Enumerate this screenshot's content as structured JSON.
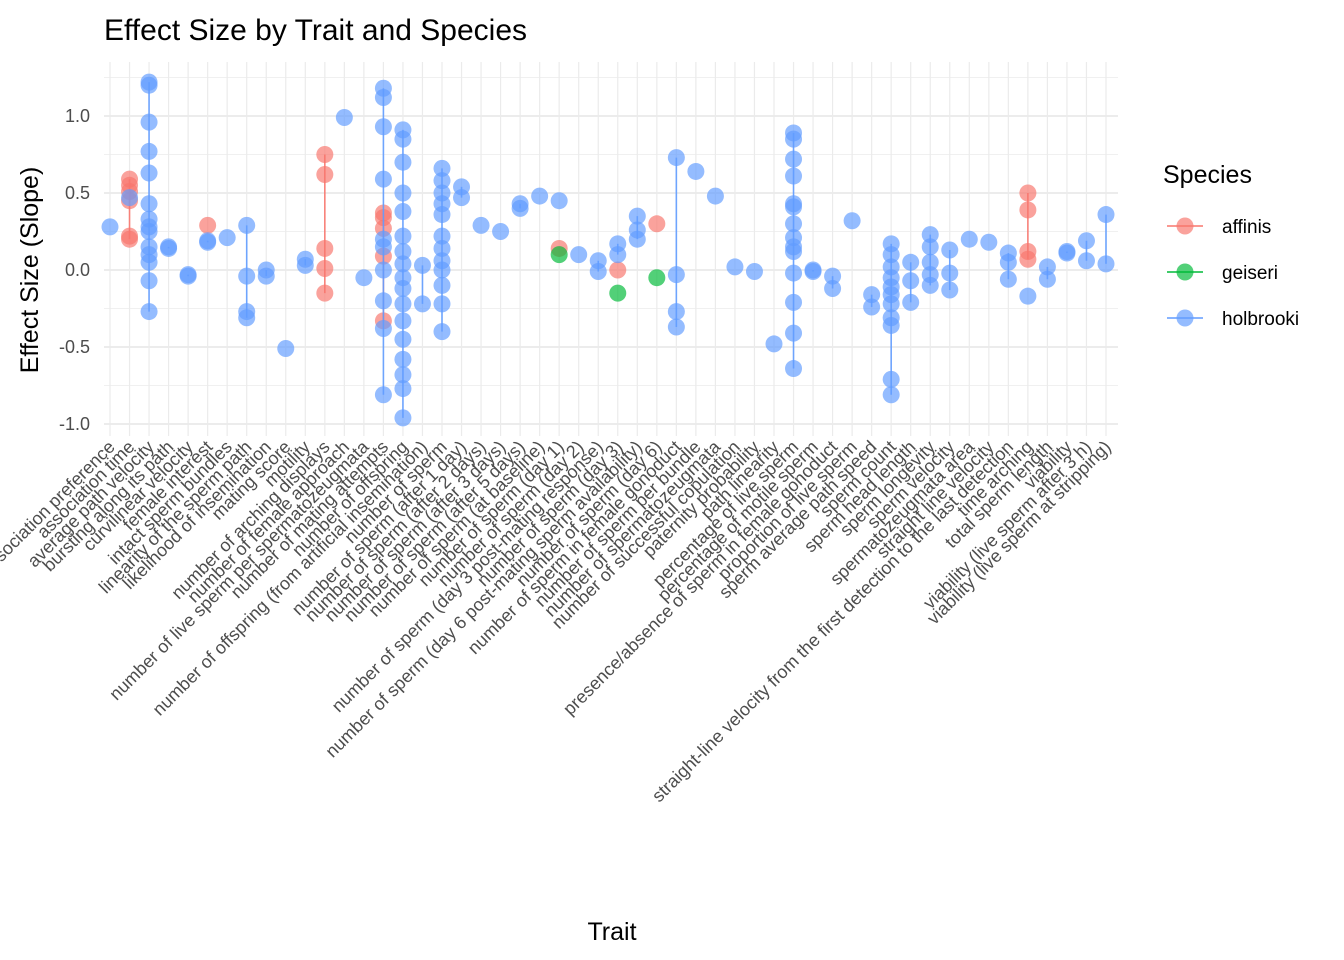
{
  "chart_data": {
    "type": "scatter",
    "title": "Effect Size by Trait and Species",
    "xlabel": "Trait",
    "ylabel": "Effect Size (Slope)",
    "ylim": [
      -1.1,
      1.3
    ],
    "yticks": [
      -1.0,
      -0.5,
      0.0,
      0.5,
      1.0
    ],
    "ytick_labels": [
      "-1.0",
      "-0.5",
      "0.0",
      "0.5",
      "1.0"
    ],
    "grid": true,
    "legend": {
      "title": "Species",
      "position": "right"
    },
    "colors": {
      "affinis": "#F8766D",
      "geiseri": "#00BA38",
      "holbrooki": "#619CFF"
    },
    "categories": [
      "association preference",
      "association time",
      "average path velocity",
      "bursting along its path",
      "curvilinear velocity",
      "female interest",
      "intact sperm bundles",
      "linearity of the sperm path",
      "likelihood of insemination",
      "mating score",
      "motility",
      "number of arching displays",
      "number of female approach",
      "number of live sperm per spermatozeugmata",
      "number of mating attempts",
      "number of offspring",
      "number of offspring (from artificial insemination)",
      "number of sperm",
      "number of sperm (after 1 day)",
      "number of sperm (after 2 days)",
      "number of sperm (after 3 days)",
      "number of sperm (after 5 days)",
      "number of sperm (at baseline)",
      "number of sperm (day 1)",
      "number of sperm (day 2)",
      "number of sperm (day 3 post-mating response)",
      "number of sperm (day 3)",
      "number of sperm (day 6 post-mating sperm availability)",
      "number of sperm (day 6)",
      "number of sperm in female gonoduct",
      "number of sperm per bundle",
      "number of spermatozeugmata",
      "number of successful copulation",
      "paternity probability",
      "path linearity",
      "percentage of live sperm",
      "percentage of motile sperm",
      "presence/absence of sperm in female gonoduct",
      "proportion of live sperm",
      "sperm average path speed",
      "sperm count",
      "sperm head length",
      "sperm longevity",
      "sperm velocity",
      "spermatozeugmata area",
      "straight line velocity",
      "straight-line velocity from the first detection to the last detection",
      "time arching",
      "total sperm length",
      "viability",
      "viability (live sperm after 3 h)",
      "viability (live sperm at stripping)"
    ],
    "series": [
      {
        "name": "affinis",
        "color": "#F8766D",
        "points": [
          {
            "x": "association time",
            "y": 0.55
          },
          {
            "x": "association time",
            "y": 0.59
          },
          {
            "x": "association time",
            "y": 0.51
          },
          {
            "x": "association time",
            "y": 0.45
          },
          {
            "x": "association time",
            "y": 0.2
          },
          {
            "x": "association time",
            "y": 0.22
          },
          {
            "x": "female interest",
            "y": 0.29
          },
          {
            "x": "number of arching displays",
            "y": 0.75
          },
          {
            "x": "number of arching displays",
            "y": 0.62
          },
          {
            "x": "number of arching displays",
            "y": 0.14
          },
          {
            "x": "number of arching displays",
            "y": 0.01
          },
          {
            "x": "number of arching displays",
            "y": -0.15
          },
          {
            "x": "number of mating attempts",
            "y": 0.37
          },
          {
            "x": "number of mating attempts",
            "y": 0.34
          },
          {
            "x": "number of mating attempts",
            "y": 0.27
          },
          {
            "x": "number of mating attempts",
            "y": 0.09
          },
          {
            "x": "number of mating attempts",
            "y": -0.33
          },
          {
            "x": "number of sperm (day 1)",
            "y": 0.14
          },
          {
            "x": "number of sperm (day 3)",
            "y": 0.0
          },
          {
            "x": "number of sperm (day 6)",
            "y": 0.3
          },
          {
            "x": "time arching",
            "y": 0.5
          },
          {
            "x": "time arching",
            "y": 0.39
          },
          {
            "x": "time arching",
            "y": 0.12
          },
          {
            "x": "time arching",
            "y": 0.07
          }
        ]
      },
      {
        "name": "geiseri",
        "color": "#00BA38",
        "points": [
          {
            "x": "number of sperm (day 1)",
            "y": 0.1
          },
          {
            "x": "number of sperm (day 3)",
            "y": -0.15
          },
          {
            "x": "number of sperm (day 6)",
            "y": -0.05
          }
        ]
      },
      {
        "name": "holbrooki",
        "color": "#619CFF",
        "points": [
          {
            "x": "association preference",
            "y": 0.28
          },
          {
            "x": "association time",
            "y": 0.47
          },
          {
            "x": "average path velocity",
            "y": 1.22
          },
          {
            "x": "average path velocity",
            "y": 1.2
          },
          {
            "x": "average path velocity",
            "y": 0.96
          },
          {
            "x": "average path velocity",
            "y": 0.77
          },
          {
            "x": "average path velocity",
            "y": 0.63
          },
          {
            "x": "average path velocity",
            "y": 0.43
          },
          {
            "x": "average path velocity",
            "y": 0.33
          },
          {
            "x": "average path velocity",
            "y": 0.28
          },
          {
            "x": "average path velocity",
            "y": 0.25
          },
          {
            "x": "average path velocity",
            "y": 0.15
          },
          {
            "x": "average path velocity",
            "y": 0.1
          },
          {
            "x": "average path velocity",
            "y": 0.05
          },
          {
            "x": "average path velocity",
            "y": -0.07
          },
          {
            "x": "average path velocity",
            "y": -0.27
          },
          {
            "x": "bursting along its path",
            "y": 0.15
          },
          {
            "x": "bursting along its path",
            "y": 0.14
          },
          {
            "x": "curvilinear velocity",
            "y": -0.03
          },
          {
            "x": "curvilinear velocity",
            "y": -0.04
          },
          {
            "x": "female interest",
            "y": 0.18
          },
          {
            "x": "female interest",
            "y": 0.19
          },
          {
            "x": "intact sperm bundles",
            "y": 0.21
          },
          {
            "x": "linearity of the sperm path",
            "y": 0.29
          },
          {
            "x": "linearity of the sperm path",
            "y": -0.04
          },
          {
            "x": "linearity of the sperm path",
            "y": -0.27
          },
          {
            "x": "linearity of the sperm path",
            "y": -0.31
          },
          {
            "x": "likelihood of insemination",
            "y": 0.0
          },
          {
            "x": "likelihood of insemination",
            "y": -0.04
          },
          {
            "x": "mating score",
            "y": -0.51
          },
          {
            "x": "motility",
            "y": 0.07
          },
          {
            "x": "motility",
            "y": 0.03
          },
          {
            "x": "number of female approach",
            "y": 0.99
          },
          {
            "x": "number of live sperm per spermatozeugmata",
            "y": -0.05
          },
          {
            "x": "number of mating attempts",
            "y": 1.18
          },
          {
            "x": "number of mating attempts",
            "y": 1.12
          },
          {
            "x": "number of mating attempts",
            "y": 0.93
          },
          {
            "x": "number of mating attempts",
            "y": 0.59
          },
          {
            "x": "number of mating attempts",
            "y": 0.2
          },
          {
            "x": "number of mating attempts",
            "y": 0.15
          },
          {
            "x": "number of mating attempts",
            "y": 0.0
          },
          {
            "x": "number of mating attempts",
            "y": -0.2
          },
          {
            "x": "number of mating attempts",
            "y": -0.38
          },
          {
            "x": "number of mating attempts",
            "y": -0.81
          },
          {
            "x": "number of offspring",
            "y": 0.91
          },
          {
            "x": "number of offspring",
            "y": 0.85
          },
          {
            "x": "number of offspring",
            "y": 0.7
          },
          {
            "x": "number of offspring",
            "y": 0.5
          },
          {
            "x": "number of offspring",
            "y": 0.38
          },
          {
            "x": "number of offspring",
            "y": 0.22
          },
          {
            "x": "number of offspring",
            "y": 0.12
          },
          {
            "x": "number of offspring",
            "y": 0.04
          },
          {
            "x": "number of offspring",
            "y": -0.05
          },
          {
            "x": "number of offspring",
            "y": -0.12
          },
          {
            "x": "number of offspring",
            "y": -0.22
          },
          {
            "x": "number of offspring",
            "y": -0.33
          },
          {
            "x": "number of offspring",
            "y": -0.45
          },
          {
            "x": "number of offspring",
            "y": -0.58
          },
          {
            "x": "number of offspring",
            "y": -0.68
          },
          {
            "x": "number of offspring",
            "y": -0.77
          },
          {
            "x": "number of offspring",
            "y": -0.96
          },
          {
            "x": "number of offspring (from artificial insemination)",
            "y": 0.03
          },
          {
            "x": "number of offspring (from artificial insemination)",
            "y": -0.22
          },
          {
            "x": "number of sperm",
            "y": 0.66
          },
          {
            "x": "number of sperm",
            "y": 0.58
          },
          {
            "x": "number of sperm",
            "y": 0.5
          },
          {
            "x": "number of sperm",
            "y": 0.43
          },
          {
            "x": "number of sperm",
            "y": 0.36
          },
          {
            "x": "number of sperm",
            "y": 0.22
          },
          {
            "x": "number of sperm",
            "y": 0.14
          },
          {
            "x": "number of sperm",
            "y": 0.06
          },
          {
            "x": "number of sperm",
            "y": 0.0
          },
          {
            "x": "number of sperm",
            "y": -0.1
          },
          {
            "x": "number of sperm",
            "y": -0.22
          },
          {
            "x": "number of sperm",
            "y": -0.4
          },
          {
            "x": "number of sperm (after 1 day)",
            "y": 0.54
          },
          {
            "x": "number of sperm (after 1 day)",
            "y": 0.47
          },
          {
            "x": "number of sperm (after 2 days)",
            "y": 0.29
          },
          {
            "x": "number of sperm (after 3 days)",
            "y": 0.25
          },
          {
            "x": "number of sperm (after 5 days)",
            "y": 0.43
          },
          {
            "x": "number of sperm (after 5 days)",
            "y": 0.4
          },
          {
            "x": "number of sperm (at baseline)",
            "y": 0.48
          },
          {
            "x": "number of sperm (day 1)",
            "y": 0.45
          },
          {
            "x": "number of sperm (day 2)",
            "y": 0.1
          },
          {
            "x": "number of sperm (day 3 post-mating response)",
            "y": 0.06
          },
          {
            "x": "number of sperm (day 3 post-mating response)",
            "y": -0.01
          },
          {
            "x": "number of sperm (day 3)",
            "y": 0.17
          },
          {
            "x": "number of sperm (day 3)",
            "y": 0.1
          },
          {
            "x": "number of sperm (day 6 post-mating sperm availability)",
            "y": 0.35
          },
          {
            "x": "number of sperm (day 6 post-mating sperm availability)",
            "y": 0.26
          },
          {
            "x": "number of sperm (day 6 post-mating sperm availability)",
            "y": 0.2
          },
          {
            "x": "number of sperm in female gonoduct",
            "y": 0.73
          },
          {
            "x": "number of sperm in female gonoduct",
            "y": -0.03
          },
          {
            "x": "number of sperm in female gonoduct",
            "y": -0.27
          },
          {
            "x": "number of sperm in female gonoduct",
            "y": -0.37
          },
          {
            "x": "number of sperm per bundle",
            "y": 0.64
          },
          {
            "x": "number of spermatozeugmata",
            "y": 0.48
          },
          {
            "x": "number of successful copulation",
            "y": 0.02
          },
          {
            "x": "paternity probability",
            "y": -0.01
          },
          {
            "x": "path linearity",
            "y": -0.48
          },
          {
            "x": "percentage of live sperm",
            "y": 0.89
          },
          {
            "x": "percentage of live sperm",
            "y": 0.85
          },
          {
            "x": "percentage of live sperm",
            "y": 0.72
          },
          {
            "x": "percentage of live sperm",
            "y": 0.61
          },
          {
            "x": "percentage of live sperm",
            "y": 0.43
          },
          {
            "x": "percentage of live sperm",
            "y": 0.41
          },
          {
            "x": "percentage of live sperm",
            "y": 0.3
          },
          {
            "x": "percentage of live sperm",
            "y": 0.21
          },
          {
            "x": "percentage of live sperm",
            "y": 0.15
          },
          {
            "x": "percentage of live sperm",
            "y": 0.12
          },
          {
            "x": "percentage of live sperm",
            "y": -0.02
          },
          {
            "x": "percentage of live sperm",
            "y": -0.21
          },
          {
            "x": "percentage of live sperm",
            "y": -0.41
          },
          {
            "x": "percentage of live sperm",
            "y": -0.64
          },
          {
            "x": "percentage of motile sperm",
            "y": 0.0
          },
          {
            "x": "percentage of motile sperm",
            "y": -0.01
          },
          {
            "x": "presence/absence of sperm in female gonoduct",
            "y": -0.04
          },
          {
            "x": "presence/absence of sperm in female gonoduct",
            "y": -0.12
          },
          {
            "x": "proportion of live sperm",
            "y": 0.32
          },
          {
            "x": "sperm average path speed",
            "y": -0.16
          },
          {
            "x": "sperm average path speed",
            "y": -0.24
          },
          {
            "x": "sperm count",
            "y": 0.17
          },
          {
            "x": "sperm count",
            "y": 0.1
          },
          {
            "x": "sperm count",
            "y": 0.02
          },
          {
            "x": "sperm count",
            "y": -0.05
          },
          {
            "x": "sperm count",
            "y": -0.11
          },
          {
            "x": "sperm count",
            "y": -0.16
          },
          {
            "x": "sperm count",
            "y": -0.22
          },
          {
            "x": "sperm count",
            "y": -0.31
          },
          {
            "x": "sperm count",
            "y": -0.36
          },
          {
            "x": "sperm count",
            "y": -0.71
          },
          {
            "x": "sperm count",
            "y": -0.81
          },
          {
            "x": "sperm head length",
            "y": 0.05
          },
          {
            "x": "sperm head length",
            "y": -0.07
          },
          {
            "x": "sperm head length",
            "y": -0.21
          },
          {
            "x": "sperm longevity",
            "y": 0.23
          },
          {
            "x": "sperm longevity",
            "y": 0.15
          },
          {
            "x": "sperm longevity",
            "y": 0.05
          },
          {
            "x": "sperm longevity",
            "y": -0.03
          },
          {
            "x": "sperm longevity",
            "y": -0.1
          },
          {
            "x": "sperm velocity",
            "y": 0.13
          },
          {
            "x": "sperm velocity",
            "y": -0.02
          },
          {
            "x": "sperm velocity",
            "y": -0.13
          },
          {
            "x": "spermatozeugmata area",
            "y": 0.2
          },
          {
            "x": "straight line velocity",
            "y": 0.18
          },
          {
            "x": "straight-line velocity from the first detection to the last detection",
            "y": 0.11
          },
          {
            "x": "straight-line velocity from the first detection to the last detection",
            "y": 0.05
          },
          {
            "x": "straight-line velocity from the first detection to the last detection",
            "y": -0.06
          },
          {
            "x": "time arching",
            "y": -0.17
          },
          {
            "x": "total sperm length",
            "y": 0.02
          },
          {
            "x": "total sperm length",
            "y": -0.06
          },
          {
            "x": "viability",
            "y": 0.12
          },
          {
            "x": "viability",
            "y": 0.11
          },
          {
            "x": "viability (live sperm after 3 h)",
            "y": 0.06
          },
          {
            "x": "viability (live sperm after 3 h)",
            "y": 0.19
          },
          {
            "x": "viability (live sperm at stripping)",
            "y": 0.36
          },
          {
            "x": "viability (live sperm at stripping)",
            "y": 0.04
          }
        ]
      }
    ]
  }
}
